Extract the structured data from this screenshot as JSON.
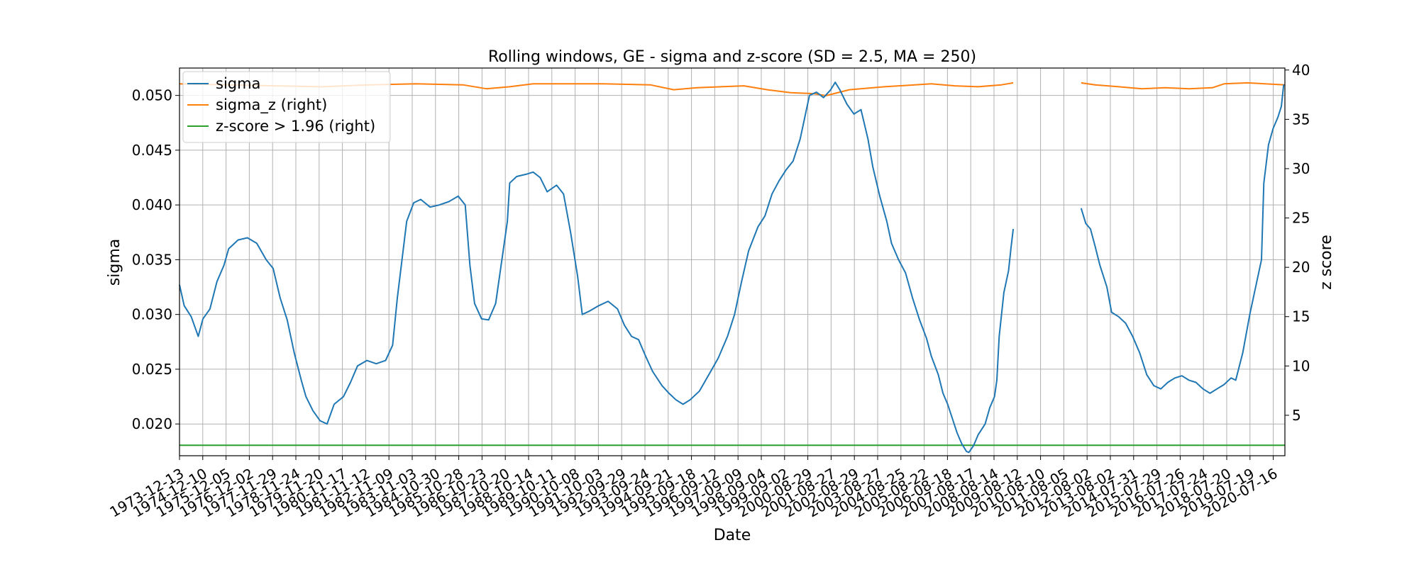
{
  "chart_data": {
    "type": "line",
    "title": "Rolling windows, GE - sigma and z-score (SD = 2.5, MA = 250)",
    "xlabel": "Date",
    "ylabel_left": "sigma",
    "ylabel_right": "z score",
    "grid": true,
    "legend_position": "upper-left",
    "x_tick_labels": [
      "1973-12-13",
      "1974-12-10",
      "1975-12-05",
      "1976-12-02",
      "1977-11-29",
      "1978-11-24",
      "1979-11-20",
      "1980-11-17",
      "1981-11-12",
      "1982-11-09",
      "1983-11-03",
      "1984-10-30",
      "1985-10-28",
      "1986-10-23",
      "1987-10-20",
      "1988-10-14",
      "1989-10-11",
      "1990-10-08",
      "1991-10-03",
      "1992-09-29",
      "1993-09-24",
      "1994-09-21",
      "1995-09-18",
      "1996-09-12",
      "1997-09-09",
      "1998-09-04",
      "1999-09-02",
      "2000-08-29",
      "2001-08-27",
      "2002-08-29",
      "2003-08-27",
      "2004-08-25",
      "2005-08-22",
      "2006-08-18",
      "2007-08-17",
      "2008-08-14",
      "2009-08-12",
      "2010-08-10",
      "2011-08-05",
      "2012-08-02",
      "2013-08-02",
      "2014-07-31",
      "2015-07-29",
      "2016-07-26",
      "2017-07-24",
      "2018-07-20",
      "2019-07-19",
      "2020-07-16"
    ],
    "y_left": {
      "min": 0.0171,
      "max": 0.0525,
      "ticks": [
        0.02,
        0.025,
        0.03,
        0.035,
        0.04,
        0.045,
        0.05
      ],
      "tick_labels": [
        "0.020",
        "0.025",
        "0.030",
        "0.035",
        "0.040",
        "0.045",
        "0.050"
      ]
    },
    "y_right": {
      "min": 0.9,
      "max": 40.2,
      "ticks": [
        5,
        10,
        15,
        20,
        25,
        30,
        35,
        40
      ],
      "tick_labels": [
        "5",
        "10",
        "15",
        "20",
        "25",
        "30",
        "35",
        "40"
      ]
    },
    "x_range": [
      1973.9,
      2021.1
    ],
    "series": [
      {
        "name": "sigma",
        "axis": "left",
        "color": "#1f77b4",
        "segments": [
          [
            [
              1973.9,
              0.0327
            ],
            [
              1974.1,
              0.0308
            ],
            [
              1974.4,
              0.0298
            ],
            [
              1974.7,
              0.028
            ],
            [
              1974.9,
              0.0296
            ],
            [
              1975.2,
              0.0305
            ],
            [
              1975.5,
              0.033
            ],
            [
              1975.8,
              0.0345
            ],
            [
              1976.0,
              0.036
            ],
            [
              1976.4,
              0.0368
            ],
            [
              1976.8,
              0.037
            ],
            [
              1977.2,
              0.0365
            ],
            [
              1977.6,
              0.035
            ],
            [
              1977.9,
              0.0342
            ],
            [
              1978.2,
              0.0315
            ],
            [
              1978.5,
              0.0295
            ],
            [
              1978.8,
              0.0265
            ],
            [
              1979.1,
              0.024
            ],
            [
              1979.3,
              0.0225
            ],
            [
              1979.6,
              0.0212
            ],
            [
              1979.9,
              0.0203
            ],
            [
              1980.2,
              0.02
            ],
            [
              1980.5,
              0.0218
            ],
            [
              1980.9,
              0.0225
            ],
            [
              1981.2,
              0.0238
            ],
            [
              1981.5,
              0.0253
            ],
            [
              1981.9,
              0.0258
            ],
            [
              1982.3,
              0.0255
            ],
            [
              1982.7,
              0.0258
            ],
            [
              1983.0,
              0.0272
            ],
            [
              1983.2,
              0.0315
            ],
            [
              1983.4,
              0.035
            ],
            [
              1983.6,
              0.0385
            ],
            [
              1983.9,
              0.0402
            ],
            [
              1984.2,
              0.0405
            ],
            [
              1984.6,
              0.0398
            ],
            [
              1985.0,
              0.04
            ],
            [
              1985.4,
              0.0403
            ],
            [
              1985.8,
              0.0408
            ],
            [
              1986.1,
              0.04
            ],
            [
              1986.3,
              0.0345
            ],
            [
              1986.5,
              0.031
            ],
            [
              1986.8,
              0.0296
            ],
            [
              1987.1,
              0.0295
            ],
            [
              1987.4,
              0.031
            ],
            [
              1987.7,
              0.0355
            ],
            [
              1987.9,
              0.0385
            ],
            [
              1988.0,
              0.042
            ],
            [
              1988.3,
              0.0426
            ],
            [
              1988.7,
              0.0428
            ],
            [
              1989.0,
              0.043
            ],
            [
              1989.3,
              0.0425
            ],
            [
              1989.6,
              0.0412
            ],
            [
              1990.0,
              0.0418
            ],
            [
              1990.3,
              0.041
            ],
            [
              1990.6,
              0.0375
            ],
            [
              1990.9,
              0.0335
            ],
            [
              1991.1,
              0.03
            ],
            [
              1991.4,
              0.0303
            ],
            [
              1991.8,
              0.0308
            ],
            [
              1992.2,
              0.0312
            ],
            [
              1992.6,
              0.0305
            ],
            [
              1992.9,
              0.029
            ],
            [
              1993.2,
              0.028
            ],
            [
              1993.5,
              0.0277
            ],
            [
              1993.8,
              0.0262
            ],
            [
              1994.1,
              0.0248
            ],
            [
              1994.5,
              0.0235
            ],
            [
              1994.8,
              0.0228
            ],
            [
              1995.1,
              0.0222
            ],
            [
              1995.4,
              0.0218
            ],
            [
              1995.7,
              0.0222
            ],
            [
              1996.1,
              0.023
            ],
            [
              1996.5,
              0.0245
            ],
            [
              1996.9,
              0.026
            ],
            [
              1997.3,
              0.028
            ],
            [
              1997.6,
              0.03
            ],
            [
              1997.9,
              0.033
            ],
            [
              1998.2,
              0.0358
            ],
            [
              1998.6,
              0.038
            ],
            [
              1998.9,
              0.039
            ],
            [
              1999.2,
              0.041
            ],
            [
              1999.5,
              0.0422
            ],
            [
              1999.8,
              0.0432
            ],
            [
              2000.1,
              0.044
            ],
            [
              2000.4,
              0.046
            ],
            [
              2000.6,
              0.048
            ],
            [
              2000.8,
              0.05
            ],
            [
              2001.1,
              0.0503
            ],
            [
              2001.4,
              0.0498
            ],
            [
              2001.7,
              0.0505
            ],
            [
              2001.9,
              0.0512
            ],
            [
              2002.1,
              0.0505
            ],
            [
              2002.4,
              0.0492
            ],
            [
              2002.7,
              0.0483
            ],
            [
              2003.0,
              0.0487
            ],
            [
              2003.3,
              0.046
            ],
            [
              2003.5,
              0.0435
            ],
            [
              2003.8,
              0.0408
            ],
            [
              2004.1,
              0.0385
            ],
            [
              2004.3,
              0.0365
            ],
            [
              2004.6,
              0.035
            ],
            [
              2004.9,
              0.0338
            ],
            [
              2005.2,
              0.0315
            ],
            [
              2005.5,
              0.0295
            ],
            [
              2005.8,
              0.0278
            ],
            [
              2006.0,
              0.0262
            ],
            [
              2006.3,
              0.0245
            ],
            [
              2006.5,
              0.0228
            ],
            [
              2006.7,
              0.0218
            ],
            [
              2006.9,
              0.0205
            ],
            [
              2007.1,
              0.0192
            ],
            [
              2007.3,
              0.0182
            ],
            [
              2007.5,
              0.0175
            ],
            [
              2007.6,
              0.0174
            ],
            [
              2007.8,
              0.018
            ],
            [
              2008.0,
              0.019
            ],
            [
              2008.3,
              0.02
            ],
            [
              2008.5,
              0.0215
            ],
            [
              2008.7,
              0.0225
            ],
            [
              2008.8,
              0.024
            ],
            [
              2008.9,
              0.028
            ],
            [
              2009.1,
              0.032
            ],
            [
              2009.3,
              0.034
            ],
            [
              2009.4,
              0.036
            ],
            [
              2009.5,
              0.0378
            ]
          ],
          [
            [
              2012.4,
              0.0397
            ],
            [
              2012.6,
              0.0383
            ],
            [
              2012.8,
              0.0378
            ],
            [
              2013.0,
              0.0362
            ],
            [
              2013.2,
              0.0345
            ],
            [
              2013.5,
              0.0325
            ],
            [
              2013.7,
              0.0302
            ],
            [
              2014.0,
              0.0298
            ],
            [
              2014.3,
              0.0292
            ],
            [
              2014.6,
              0.028
            ],
            [
              2014.9,
              0.0265
            ],
            [
              2015.2,
              0.0245
            ],
            [
              2015.5,
              0.0235
            ],
            [
              2015.8,
              0.0232
            ],
            [
              2016.1,
              0.0238
            ],
            [
              2016.4,
              0.0242
            ],
            [
              2016.7,
              0.0244
            ],
            [
              2017.0,
              0.024
            ],
            [
              2017.3,
              0.0238
            ],
            [
              2017.6,
              0.0232
            ],
            [
              2017.9,
              0.0228
            ],
            [
              2018.2,
              0.0232
            ],
            [
              2018.5,
              0.0236
            ],
            [
              2018.8,
              0.0242
            ],
            [
              2019.0,
              0.024
            ],
            [
              2019.3,
              0.0265
            ],
            [
              2019.6,
              0.03
            ],
            [
              2019.9,
              0.033
            ],
            [
              2020.1,
              0.035
            ],
            [
              2020.2,
              0.042
            ],
            [
              2020.4,
              0.0455
            ],
            [
              2020.6,
              0.047
            ],
            [
              2020.8,
              0.048
            ],
            [
              2020.95,
              0.049
            ],
            [
              2021.05,
              0.051
            ]
          ]
        ]
      },
      {
        "name": "sigma_z (right)",
        "axis": "right",
        "color": "#ff7f0e",
        "segments": [
          [
            [
              1973.9,
              38.6
            ],
            [
              1976.0,
              38.5
            ],
            [
              1978.0,
              38.4
            ],
            [
              1980.0,
              38.3
            ],
            [
              1982.0,
              38.5
            ],
            [
              1984.0,
              38.6
            ],
            [
              1986.0,
              38.5
            ],
            [
              1987.0,
              38.1
            ],
            [
              1988.0,
              38.3
            ],
            [
              1989.0,
              38.6
            ],
            [
              1992.0,
              38.6
            ],
            [
              1994.0,
              38.5
            ],
            [
              1995.0,
              38.0
            ],
            [
              1996.0,
              38.2
            ],
            [
              1998.0,
              38.4
            ],
            [
              1999.0,
              38.0
            ],
            [
              2000.0,
              37.7
            ],
            [
              2001.0,
              37.6
            ],
            [
              2001.5,
              37.4
            ],
            [
              2002.5,
              38.0
            ],
            [
              2004.0,
              38.3
            ],
            [
              2006.0,
              38.6
            ],
            [
              2007.0,
              38.4
            ],
            [
              2008.0,
              38.3
            ],
            [
              2009.0,
              38.5
            ],
            [
              2009.5,
              38.7
            ]
          ],
          [
            [
              2012.4,
              38.7
            ],
            [
              2013.0,
              38.5
            ],
            [
              2014.0,
              38.3
            ],
            [
              2015.0,
              38.1
            ],
            [
              2016.0,
              38.2
            ],
            [
              2017.0,
              38.1
            ],
            [
              2018.0,
              38.2
            ],
            [
              2018.5,
              38.6
            ],
            [
              2019.5,
              38.7
            ],
            [
              2021.1,
              38.5
            ]
          ]
        ]
      },
      {
        "name": "z-score > 1.96 (right)",
        "axis": "right",
        "color": "#2ca02c",
        "segments": [
          [
            [
              1973.9,
              1.96
            ],
            [
              2021.1,
              1.96
            ]
          ]
        ]
      }
    ]
  }
}
